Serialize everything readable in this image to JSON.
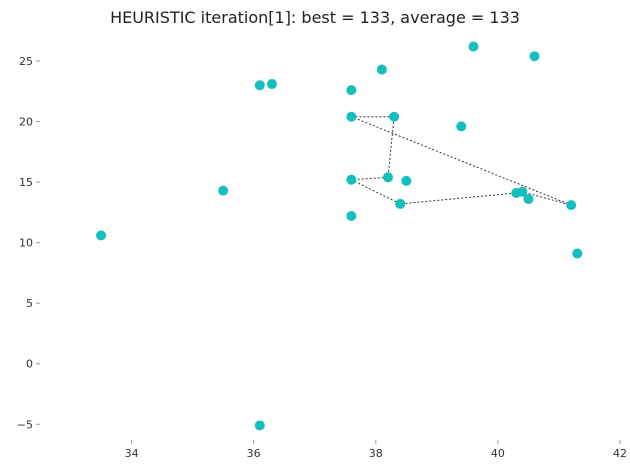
{
  "chart_data": {
    "type": "scatter",
    "title": "HEURISTIC iteration[1]: best = 133, average = 133",
    "xlabel": "",
    "ylabel": "",
    "xlim": [
      32.5,
      42.0
    ],
    "ylim": [
      -6.3,
      27.4
    ],
    "grid": false,
    "legend": "none",
    "point_color": "#14bfbd",
    "route_color": "#333333",
    "x_ticks": [
      34,
      36,
      38,
      40,
      42
    ],
    "x_tick_labels": [
      "34",
      "36",
      "38",
      "40",
      "42"
    ],
    "y_ticks": [
      -5,
      0,
      5,
      10,
      15,
      20,
      25
    ],
    "y_tick_labels": [
      "−5",
      "0",
      "5",
      "10",
      "15",
      "20",
      "25"
    ],
    "points": [
      {
        "x": 33.5,
        "y": 10.6
      },
      {
        "x": 35.5,
        "y": 14.3
      },
      {
        "x": 36.1,
        "y": 23.0
      },
      {
        "x": 36.3,
        "y": 23.1
      },
      {
        "x": 36.1,
        "y": -5.1
      },
      {
        "x": 37.6,
        "y": 22.6
      },
      {
        "x": 37.6,
        "y": 20.4
      },
      {
        "x": 37.6,
        "y": 15.2
      },
      {
        "x": 37.6,
        "y": 12.2
      },
      {
        "x": 38.1,
        "y": 24.3
      },
      {
        "x": 38.2,
        "y": 15.4
      },
      {
        "x": 38.3,
        "y": 20.4
      },
      {
        "x": 38.4,
        "y": 13.2
      },
      {
        "x": 38.5,
        "y": 15.1
      },
      {
        "x": 39.4,
        "y": 19.6
      },
      {
        "x": 39.6,
        "y": 26.2
      },
      {
        "x": 40.3,
        "y": 14.1
      },
      {
        "x": 40.4,
        "y": 14.2
      },
      {
        "x": 40.5,
        "y": 13.6
      },
      {
        "x": 40.6,
        "y": 25.4
      },
      {
        "x": 41.2,
        "y": 13.1
      },
      {
        "x": 41.3,
        "y": 9.1
      }
    ],
    "route": [
      {
        "x": 37.6,
        "y": 20.4
      },
      {
        "x": 38.3,
        "y": 20.4
      },
      {
        "x": 38.2,
        "y": 15.4
      },
      {
        "x": 37.6,
        "y": 15.2
      },
      {
        "x": 38.4,
        "y": 13.2
      },
      {
        "x": 40.3,
        "y": 14.1
      },
      {
        "x": 40.4,
        "y": 14.2
      },
      {
        "x": 41.2,
        "y": 13.1
      },
      {
        "x": 37.6,
        "y": 20.4
      }
    ]
  }
}
